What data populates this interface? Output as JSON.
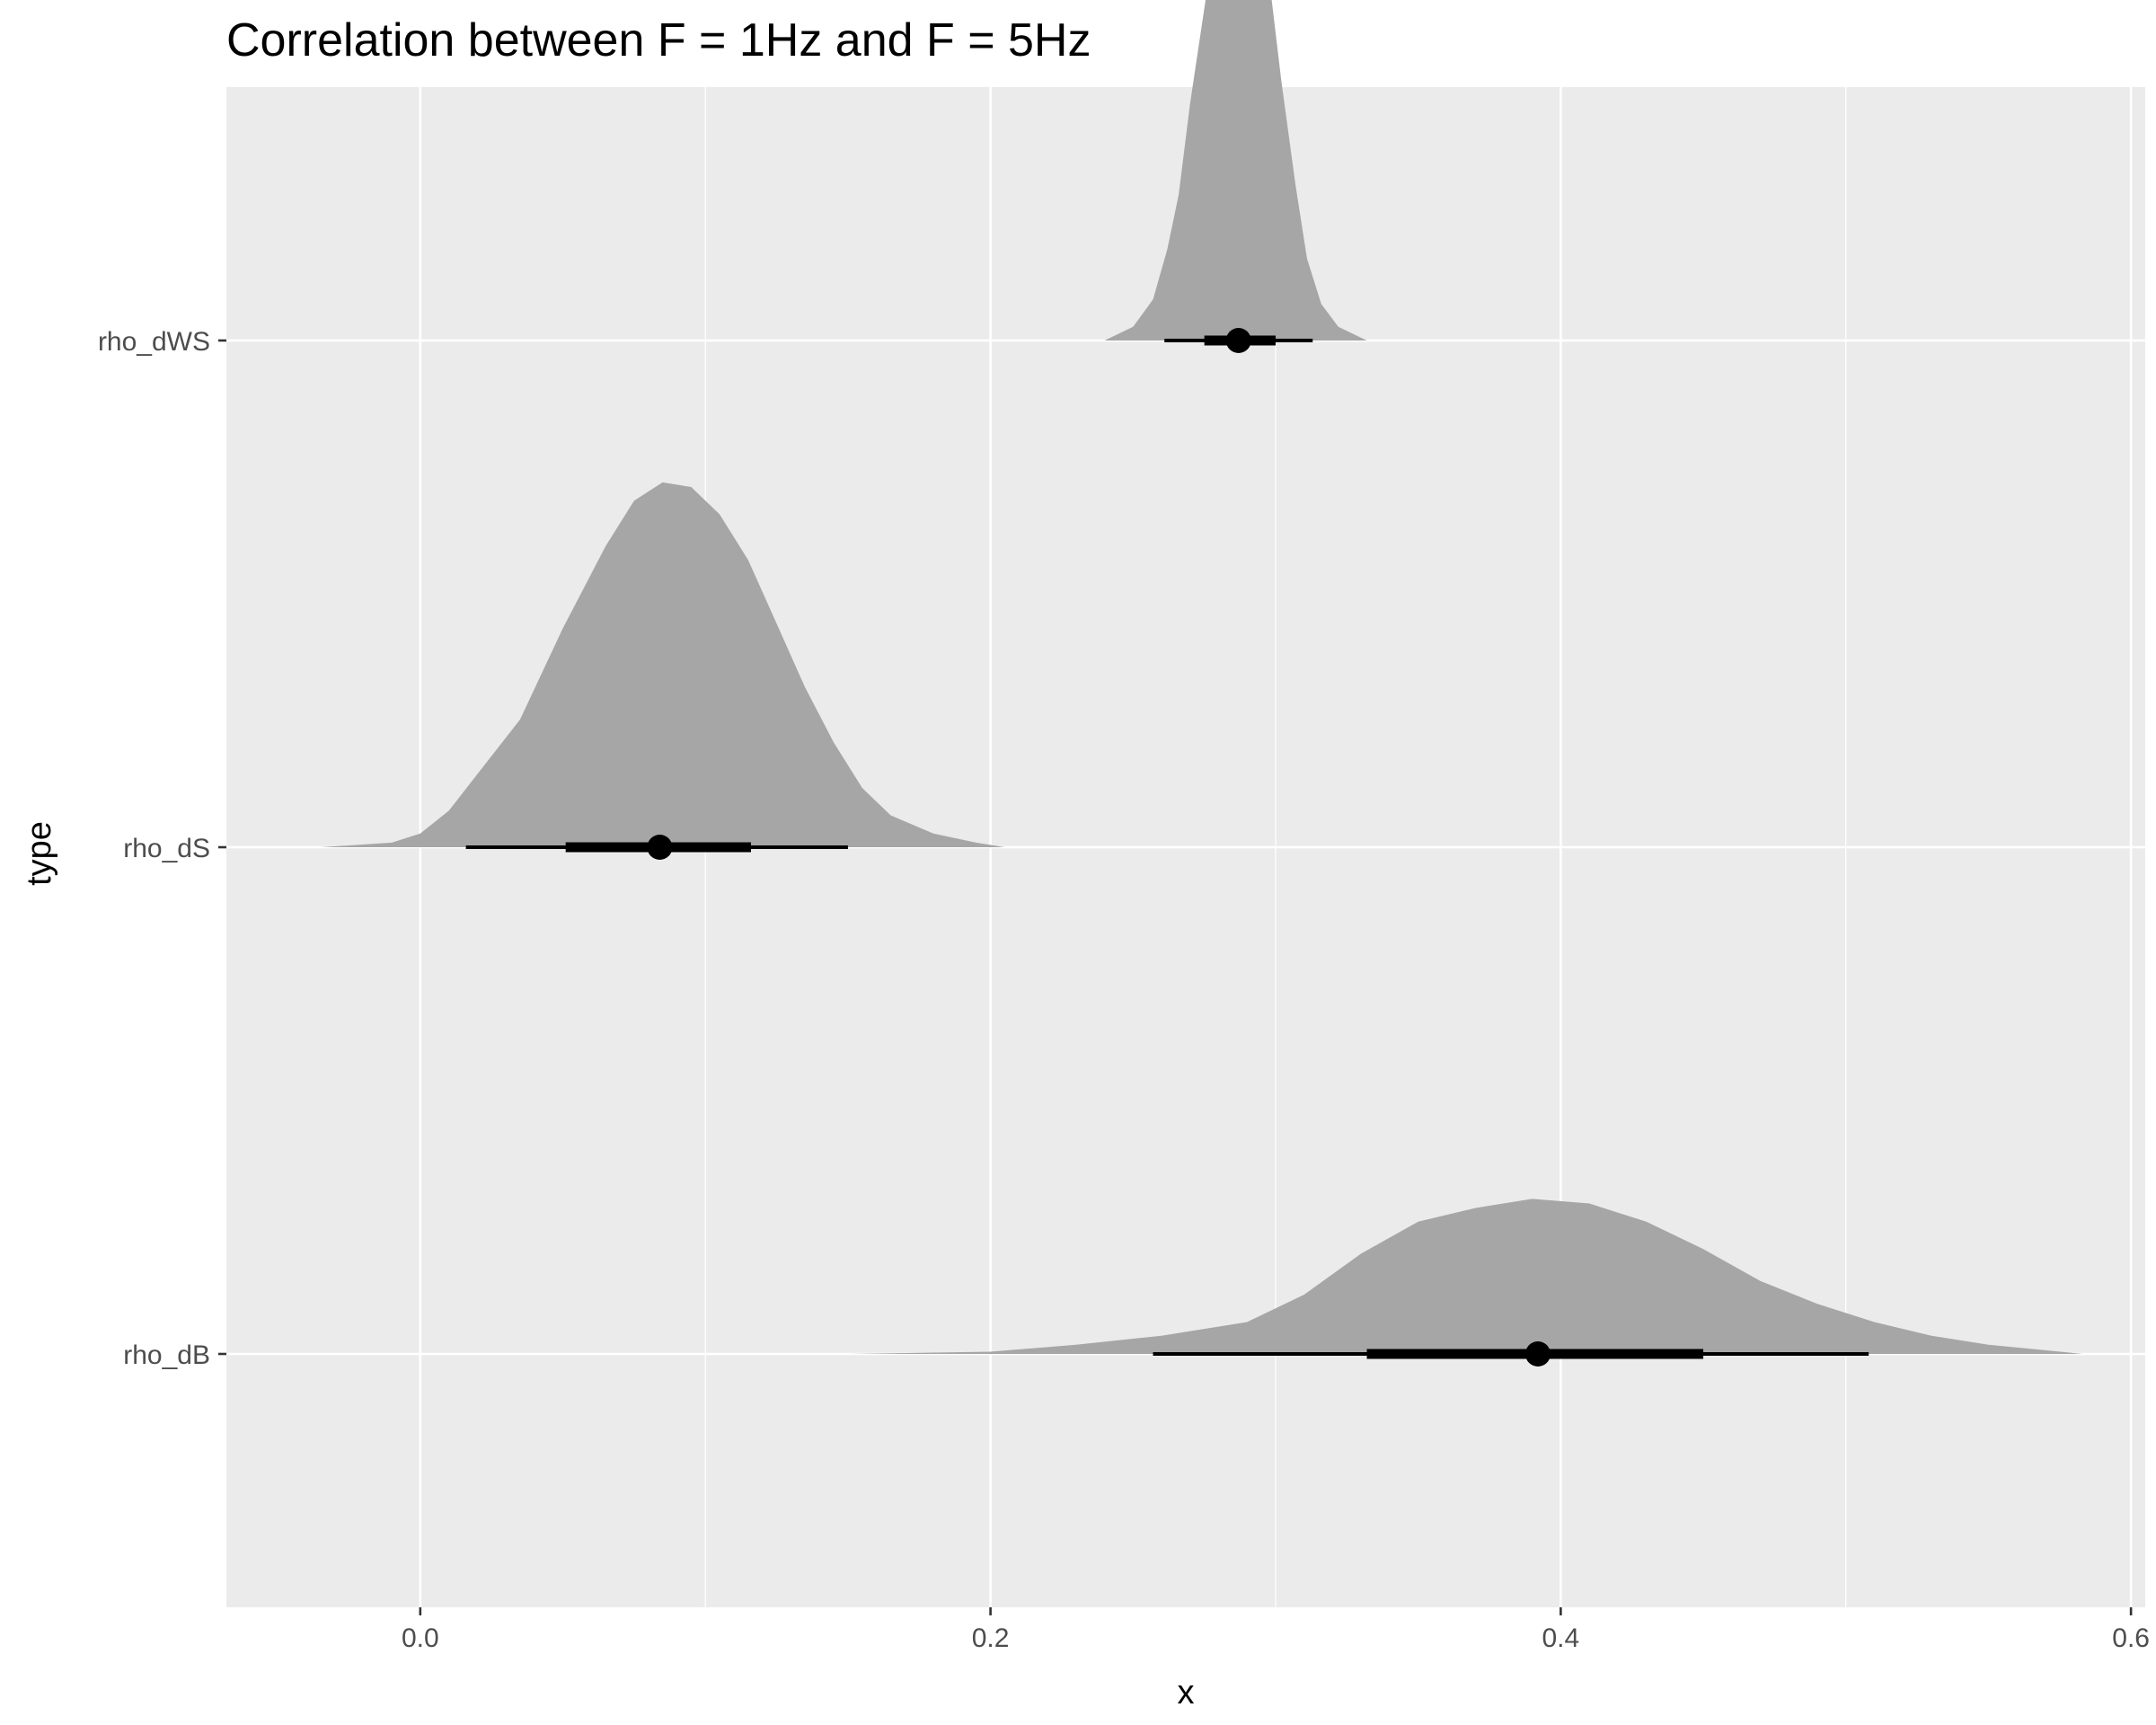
{
  "chart_data": {
    "type": "halfeye",
    "title": "Correlation between F = 1Hz and F = 5Hz",
    "xlabel": "x",
    "ylabel": "type",
    "xlim": [
      -0.068,
      0.605
    ],
    "x_ticks": [
      0.0,
      0.2,
      0.4,
      0.6
    ],
    "x_tick_labels": [
      "0.0",
      "0.2",
      "0.4",
      "0.6"
    ],
    "x_minor_ticks": [
      0.1,
      0.3,
      0.5
    ],
    "categories": [
      "rho_dWS",
      "rho_dS",
      "rho_dB"
    ],
    "grid": true,
    "panel_background": "#ebebeb",
    "density_fill": "#a6a6a6",
    "interval_color": "#000000",
    "series": [
      {
        "category": "rho_dWS",
        "point": 0.287,
        "interval_66": [
          0.275,
          0.3
        ],
        "interval_95": [
          0.261,
          0.313
        ],
        "density": [
          [
            0.24,
            0.0
          ],
          [
            0.25,
            0.03
          ],
          [
            0.257,
            0.09
          ],
          [
            0.262,
            0.2
          ],
          [
            0.266,
            0.32
          ],
          [
            0.27,
            0.52
          ],
          [
            0.276,
            0.77
          ],
          [
            0.28,
            0.9
          ],
          [
            0.284,
            0.98
          ],
          [
            0.287,
            1.0
          ],
          [
            0.29,
            0.985
          ],
          [
            0.294,
            0.92
          ],
          [
            0.298,
            0.78
          ],
          [
            0.302,
            0.57
          ],
          [
            0.307,
            0.34
          ],
          [
            0.311,
            0.18
          ],
          [
            0.316,
            0.08
          ],
          [
            0.322,
            0.03
          ],
          [
            0.332,
            0.0
          ]
        ]
      },
      {
        "category": "rho_dS",
        "point": 0.084,
        "interval_66": [
          0.051,
          0.116
        ],
        "interval_95": [
          0.016,
          0.15
        ],
        "density": [
          [
            -0.035,
            0.0
          ],
          [
            -0.01,
            0.01
          ],
          [
            0.0,
            0.03
          ],
          [
            0.01,
            0.08
          ],
          [
            0.02,
            0.16
          ],
          [
            0.035,
            0.28
          ],
          [
            0.05,
            0.48
          ],
          [
            0.065,
            0.66
          ],
          [
            0.075,
            0.76
          ],
          [
            0.085,
            0.8
          ],
          [
            0.095,
            0.79
          ],
          [
            0.105,
            0.73
          ],
          [
            0.115,
            0.63
          ],
          [
            0.125,
            0.49
          ],
          [
            0.135,
            0.35
          ],
          [
            0.145,
            0.23
          ],
          [
            0.155,
            0.13
          ],
          [
            0.165,
            0.07
          ],
          [
            0.18,
            0.03
          ],
          [
            0.195,
            0.01
          ],
          [
            0.205,
            0.0
          ]
        ]
      },
      {
        "category": "rho_dB",
        "point": 0.392,
        "interval_66": [
          0.332,
          0.45
        ],
        "interval_95": [
          0.257,
          0.508
        ],
        "density": [
          [
            0.15,
            0.0
          ],
          [
            0.2,
            0.005
          ],
          [
            0.23,
            0.02
          ],
          [
            0.26,
            0.04
          ],
          [
            0.29,
            0.07
          ],
          [
            0.31,
            0.13
          ],
          [
            0.33,
            0.22
          ],
          [
            0.35,
            0.29
          ],
          [
            0.37,
            0.32
          ],
          [
            0.39,
            0.34
          ],
          [
            0.41,
            0.33
          ],
          [
            0.43,
            0.29
          ],
          [
            0.45,
            0.23
          ],
          [
            0.47,
            0.16
          ],
          [
            0.49,
            0.11
          ],
          [
            0.51,
            0.07
          ],
          [
            0.53,
            0.04
          ],
          [
            0.55,
            0.02
          ],
          [
            0.57,
            0.008
          ],
          [
            0.583,
            0.0
          ]
        ]
      }
    ]
  }
}
